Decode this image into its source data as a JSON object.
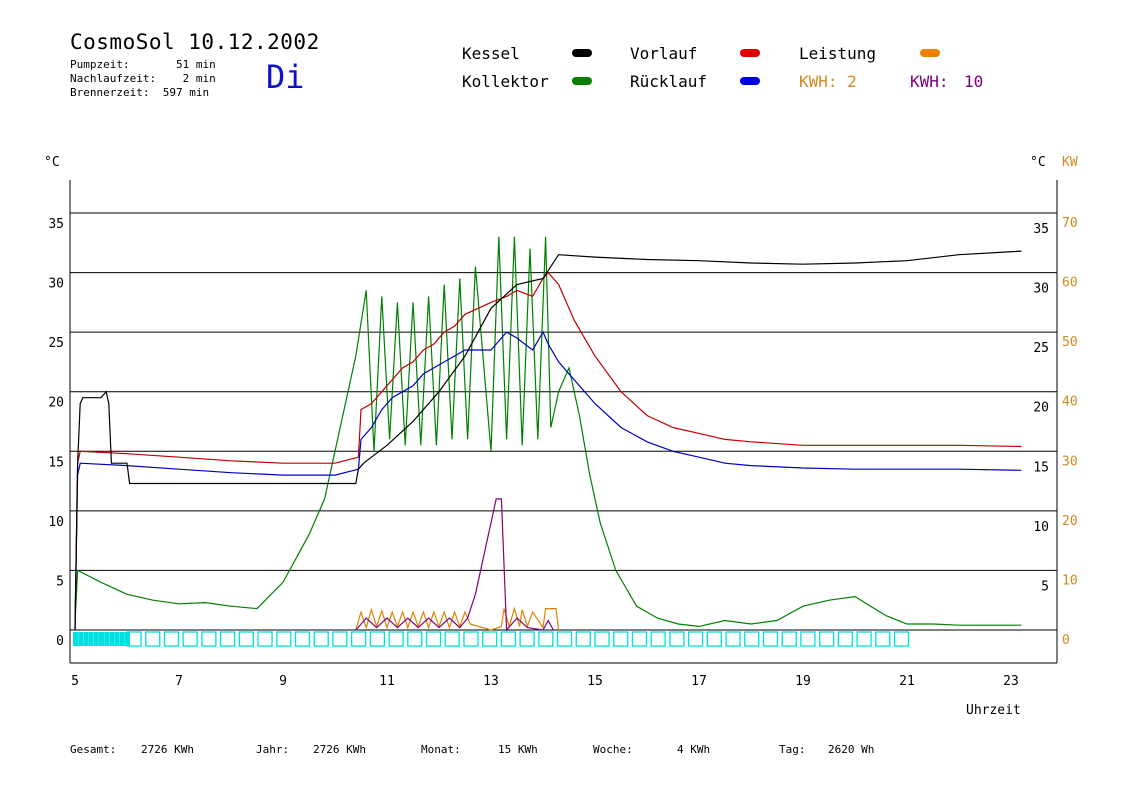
{
  "header": {
    "title": "CosmoSol 10.12.2002",
    "pumpzeit": "Pumpzeit:       51 min",
    "nachlaufzeit": "Nachlaufzeit:    2 min",
    "brennerzeit": "Brennerzeit:  597 min",
    "day": "Di"
  },
  "legend": {
    "kessel": "Kessel",
    "kollektor": "Kollektor",
    "vorlauf": "Vorlauf",
    "ruecklauf": "Rücklauf",
    "leistung": "Leistung",
    "kwh2": "KWH: 2",
    "kwh10_label": "KWH:",
    "kwh10_value": "10"
  },
  "footer": {
    "gesamt_label": "Gesamt:",
    "gesamt_value": "2726 KWh",
    "jahr_label": "Jahr:",
    "jahr_value": "2726 KWh",
    "monat_label": "Monat:",
    "monat_value": "15 KWh",
    "woche_label": "Woche:",
    "woche_value": "4 KWh",
    "tag_label": "Tag:",
    "tag_value": "2620 Wh"
  },
  "chart_data": {
    "type": "line",
    "xlabel": "Uhrzeit",
    "ylabel_left": "°C",
    "ylabel_right_temp": "°C",
    "ylabel_right_power": "KW",
    "xlim": [
      5,
      24
    ],
    "ylim": [
      -2,
      38
    ],
    "xticks": [
      "5",
      "7",
      "9",
      "11",
      "13",
      "15",
      "17",
      "19",
      "21",
      "23"
    ],
    "yticks_left": [
      "0",
      "5",
      "10",
      "15",
      "20",
      "25",
      "30",
      "35"
    ],
    "yticks_right_temp": [
      "5",
      "10",
      "15",
      "20",
      "25",
      "30",
      "35"
    ],
    "yticks_right_kw": [
      "0",
      "10",
      "20",
      "30",
      "40",
      "50",
      "60",
      "70"
    ],
    "grid": "horizontal",
    "colors": {
      "kessel": "#000000",
      "kollektor": "#008000",
      "vorlauf": "#c00000",
      "ruecklauf": "#0000c0",
      "leistung": "#e08000",
      "kwh2": "#d08a20",
      "kwh10": "#800080",
      "pump": "#00e0e0"
    },
    "series": [
      {
        "name": "Kessel",
        "x": [
          5.0,
          5.05,
          5.1,
          5.15,
          5.2,
          5.5,
          5.6,
          5.65,
          5.7,
          6.0,
          6.05,
          8.0,
          10.0,
          10.4,
          10.45,
          10.55,
          10.7,
          11.0,
          11.5,
          12.0,
          12.5,
          13.0,
          13.5,
          14.0,
          14.15,
          14.3,
          15.0,
          16.0,
          17.0,
          18.0,
          19.0,
          20.0,
          21.0,
          22.0,
          23.2
        ],
        "y": [
          0.0,
          14.0,
          19.0,
          19.5,
          19.5,
          19.5,
          20.0,
          19.0,
          14.0,
          14.0,
          12.3,
          12.3,
          12.3,
          12.3,
          13.5,
          14.0,
          14.5,
          15.5,
          17.5,
          20.0,
          23.0,
          27.0,
          29.0,
          29.5,
          30.5,
          31.5,
          31.3,
          31.1,
          31.0,
          30.8,
          30.7,
          30.8,
          31.0,
          31.5,
          31.8
        ]
      },
      {
        "name": "Kollektor",
        "x": [
          5.0,
          5.05,
          5.5,
          6.0,
          6.5,
          7.0,
          7.5,
          8.0,
          8.5,
          9.0,
          9.5,
          9.8,
          10.0,
          10.2,
          10.4,
          10.6,
          10.75,
          10.9,
          11.05,
          11.2,
          11.35,
          11.5,
          11.65,
          11.8,
          11.95,
          12.1,
          12.25,
          12.4,
          12.55,
          12.7,
          13.0,
          13.15,
          13.3,
          13.45,
          13.6,
          13.75,
          13.9,
          14.05,
          14.15,
          14.3,
          14.5,
          14.7,
          14.9,
          15.1,
          15.4,
          15.8,
          16.2,
          16.6,
          17.0,
          17.5,
          18.0,
          18.5,
          19.0,
          19.5,
          20.0,
          20.3,
          20.6,
          21.0,
          21.5,
          22.0,
          22.5,
          23.2
        ],
        "y": [
          0.5,
          5.0,
          4.0,
          3.0,
          2.5,
          2.2,
          2.3,
          2.0,
          1.8,
          4.0,
          8.0,
          11.0,
          15.0,
          19.0,
          23.0,
          28.5,
          15.0,
          28.0,
          16.0,
          27.5,
          15.5,
          27.5,
          15.5,
          28.0,
          15.5,
          29.0,
          16.0,
          29.5,
          16.0,
          30.5,
          15.0,
          33.0,
          16.0,
          33.0,
          15.5,
          32.0,
          16.0,
          33.0,
          17.0,
          20.0,
          22.0,
          18.0,
          13.0,
          9.0,
          5.0,
          2.0,
          1.0,
          0.5,
          0.3,
          0.8,
          0.5,
          0.8,
          2.0,
          2.5,
          2.8,
          2.0,
          1.2,
          0.5,
          0.5,
          0.4,
          0.4,
          0.4
        ]
      },
      {
        "name": "Vorlauf",
        "x": [
          5.0,
          5.05,
          5.1,
          6.0,
          7.0,
          8.0,
          9.0,
          10.0,
          10.45,
          10.5,
          10.7,
          10.9,
          11.1,
          11.3,
          11.5,
          11.7,
          11.9,
          12.1,
          12.3,
          12.5,
          13.0,
          13.3,
          13.5,
          13.8,
          14.0,
          14.1,
          14.3,
          14.6,
          15.0,
          15.5,
          16.0,
          16.5,
          17.0,
          17.5,
          18.0,
          19.0,
          20.0,
          21.0,
          22.0,
          23.2
        ],
        "y": [
          0.0,
          14.0,
          15.0,
          14.8,
          14.5,
          14.2,
          14.0,
          14.0,
          14.5,
          18.5,
          19.0,
          20.0,
          21.0,
          22.0,
          22.5,
          23.5,
          24.0,
          25.0,
          25.5,
          26.5,
          27.5,
          28.0,
          28.5,
          28.0,
          29.5,
          30.0,
          29.0,
          26.0,
          23.0,
          20.0,
          18.0,
          17.0,
          16.5,
          16.0,
          15.8,
          15.5,
          15.5,
          15.5,
          15.5,
          15.4
        ]
      },
      {
        "name": "Rücklauf",
        "x": [
          5.0,
          5.05,
          5.1,
          6.0,
          7.0,
          8.0,
          9.0,
          10.0,
          10.45,
          10.5,
          10.7,
          10.9,
          11.1,
          11.3,
          11.5,
          11.7,
          11.9,
          12.1,
          12.3,
          12.5,
          13.0,
          13.3,
          13.5,
          13.8,
          14.0,
          14.1,
          14.3,
          14.6,
          15.0,
          15.5,
          16.0,
          16.5,
          17.0,
          17.5,
          18.0,
          19.0,
          20.0,
          21.0,
          22.0,
          23.2
        ],
        "y": [
          0.0,
          13.0,
          14.0,
          13.8,
          13.5,
          13.2,
          13.0,
          13.0,
          13.5,
          16.0,
          17.0,
          18.5,
          19.5,
          20.0,
          20.5,
          21.5,
          22.0,
          22.5,
          23.0,
          23.5,
          23.5,
          25.0,
          24.5,
          23.5,
          25.0,
          24.0,
          22.5,
          21.0,
          19.0,
          17.0,
          15.8,
          15.0,
          14.5,
          14.0,
          13.8,
          13.6,
          13.5,
          13.5,
          13.5,
          13.4
        ]
      },
      {
        "name": "Leistung",
        "x": [
          10.4,
          10.5,
          10.6,
          10.7,
          10.8,
          10.9,
          11.0,
          11.1,
          11.2,
          11.3,
          11.4,
          11.5,
          11.6,
          11.7,
          11.8,
          11.9,
          12.0,
          12.1,
          12.2,
          12.3,
          12.4,
          12.5,
          12.6,
          13.0,
          13.2,
          13.25,
          13.35,
          13.45,
          13.55,
          13.6,
          13.7,
          13.8,
          14.0,
          14.05,
          14.15,
          14.25,
          14.3
        ],
        "y": [
          0.0,
          1.5,
          0.2,
          1.7,
          0.3,
          1.6,
          0.2,
          1.5,
          0.3,
          1.5,
          0.2,
          1.5,
          0.3,
          1.5,
          0.2,
          1.5,
          0.3,
          1.5,
          0.2,
          1.5,
          0.3,
          1.5,
          0.5,
          0.0,
          0.3,
          1.8,
          0.3,
          1.8,
          0.3,
          1.7,
          0.3,
          1.5,
          0.2,
          1.8,
          1.8,
          1.8,
          0.0
        ]
      },
      {
        "name": "KWH: 10",
        "x": [
          10.4,
          10.6,
          10.8,
          11.0,
          11.2,
          11.4,
          11.6,
          11.8,
          12.0,
          12.2,
          12.4,
          12.55,
          12.7,
          13.0,
          13.1,
          13.2,
          13.3,
          13.5,
          13.7,
          14.0,
          14.1,
          14.2
        ],
        "y": [
          0.0,
          1.0,
          0.2,
          1.0,
          0.2,
          1.0,
          0.2,
          1.0,
          0.2,
          1.0,
          0.2,
          1.0,
          3.0,
          9.0,
          11.0,
          11.0,
          0.0,
          1.0,
          0.2,
          0.0,
          0.8,
          0.0
        ]
      }
    ],
    "pump_series": {
      "name": "Pumpe",
      "x": [
        5.0,
        5.1,
        5.2,
        5.3,
        5.4,
        5.5,
        5.6,
        5.7,
        5.8,
        5.9,
        6.0
      ],
      "on": [
        1,
        1,
        1,
        1,
        1,
        1,
        1,
        1,
        1,
        1,
        1
      ]
    }
  }
}
